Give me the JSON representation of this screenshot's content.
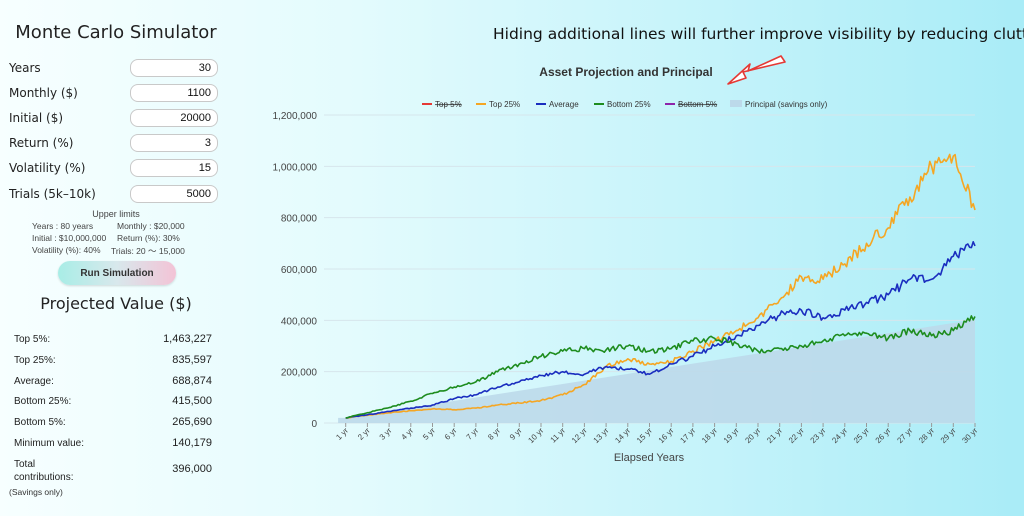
{
  "app_title": "Monte Carlo Simulator",
  "inputs": [
    {
      "label": "Years",
      "value": "30"
    },
    {
      "label": "Monthly ($)",
      "value": "1100"
    },
    {
      "label": "Initial ($)",
      "value": "20000"
    },
    {
      "label": "Return (%)",
      "value": "3"
    },
    {
      "label": "Volatility (%)",
      "value": "15"
    },
    {
      "label": "Trials (5k–10k)",
      "value": "5000"
    }
  ],
  "limits": {
    "title": "Upper limits",
    "years": "Years : 80 years",
    "monthly": "Monthly : $20,000",
    "initial": "Initial : $10,000,000",
    "return": "Return (%): 30%",
    "volatility": "Volatility (%): 40%",
    "trials": "Trials: 20 ～ 15,000"
  },
  "run_button": "Run Simulation",
  "results": {
    "title": "Projected Value ($)",
    "rows": [
      {
        "label": "Top 5%:",
        "value": "1,463,227"
      },
      {
        "label": "Top 25%:",
        "value": "835,597"
      },
      {
        "label": "Average:",
        "value": "688,874"
      },
      {
        "label": "Bottom 25%:",
        "value": "415,500"
      },
      {
        "label": "Bottom 5%:",
        "value": "265,690"
      },
      {
        "label": "Minimum value:",
        "value": "140,179"
      },
      {
        "label": "Total contributions:",
        "value": "396,000"
      }
    ],
    "note": "(Savings only)"
  },
  "annotation": "Hiding additional lines will further improve visibility by reducing clutter.",
  "chart_data": {
    "type": "line",
    "title": "Asset Projection and Principal",
    "xlabel": "Elapsed Years",
    "ylabel": "",
    "x_ticks": [
      "1 yr",
      "2 yr",
      "3 yr",
      "4 yr",
      "5 yr",
      "6 yr",
      "7 yr",
      "8 yr",
      "9 yr",
      "10 yr",
      "11 yr",
      "12 yr",
      "13 yr",
      "14 yr",
      "15 yr",
      "16 yr",
      "17 yr",
      "18 yr",
      "19 yr",
      "20 yr",
      "21 yr",
      "22 yr",
      "23 yr",
      "24 yr",
      "25 yr",
      "26 yr",
      "27 yr",
      "28 yr",
      "29 yr",
      "30 yr"
    ],
    "y_ticks": [
      "0",
      "200,000",
      "400,000",
      "600,000",
      "800,000",
      "1,000,000",
      "1,200,000"
    ],
    "xlim": [
      0,
      30
    ],
    "ylim": [
      0,
      1200000
    ],
    "grid": true,
    "legend_position": "top",
    "series": [
      {
        "name": "Top 5%",
        "color": "#e53935",
        "hidden": true,
        "values": []
      },
      {
        "name": "Top 25%",
        "color": "#f5a623",
        "hidden": false,
        "values": [
          20000,
          30000,
          40000,
          48000,
          55000,
          52000,
          58000,
          70000,
          78000,
          88000,
          110000,
          150000,
          220000,
          250000,
          230000,
          240000,
          280000,
          320000,
          360000,
          410000,
          480000,
          570000,
          560000,
          620000,
          700000,
          760000,
          880000,
          1000000,
          1040000,
          830000
        ]
      },
      {
        "name": "Average",
        "color": "#1a2dbf",
        "hidden": false,
        "values": [
          20000,
          32000,
          45000,
          58000,
          70000,
          95000,
          110000,
          140000,
          160000,
          185000,
          200000,
          190000,
          220000,
          210000,
          190000,
          230000,
          260000,
          300000,
          340000,
          380000,
          420000,
          440000,
          410000,
          440000,
          470000,
          500000,
          560000,
          560000,
          650000,
          690000
        ]
      },
      {
        "name": "Bottom 25%",
        "color": "#1e8c1e",
        "hidden": false,
        "values": [
          20000,
          40000,
          60000,
          85000,
          115000,
          140000,
          160000,
          200000,
          230000,
          260000,
          280000,
          290000,
          285000,
          300000,
          280000,
          290000,
          320000,
          330000,
          310000,
          280000,
          290000,
          300000,
          320000,
          340000,
          350000,
          330000,
          360000,
          340000,
          360000,
          415000
        ]
      },
      {
        "name": "Bottom 5%",
        "color": "#8e24aa",
        "hidden": true,
        "values": []
      },
      {
        "name": "Principal (savings only)",
        "color": "#bcd9ea",
        "type": "area",
        "hidden": false,
        "values": [
          20000,
          33200,
          46400,
          59600,
          72800,
          86000,
          99200,
          112400,
          125600,
          138800,
          152000,
          165200,
          178400,
          191600,
          204800,
          218000,
          231200,
          244400,
          257600,
          270800,
          284000,
          297200,
          310400,
          323600,
          336800,
          350000,
          363200,
          376400,
          389600,
          402800
        ]
      }
    ]
  }
}
